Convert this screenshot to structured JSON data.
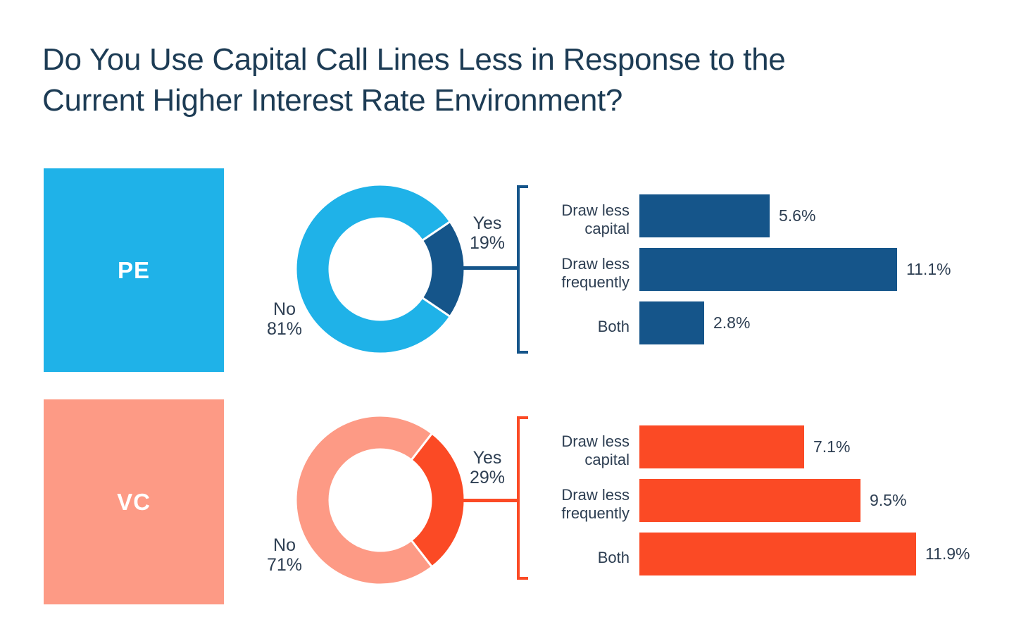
{
  "theme": {
    "background": "#FFFFFF",
    "title_color": "#1D3C55",
    "text_color": "#2D3E52"
  },
  "chart_data": {
    "type": "donut+bar",
    "title": "Do You Use Capital Call Lines Less in Response to the Current Higher Interest Rate Environment?",
    "title_lines": [
      "Do You Use Capital Call Lines Less in Response to the",
      "Current Higher Interest Rate Environment?"
    ],
    "unit": "%",
    "groups": [
      {
        "id": "pe",
        "label": "PE",
        "colors": {
          "base": "#1FB2E8",
          "accent": "#15558A"
        },
        "donut": {
          "segments": [
            {
              "label": "Yes",
              "value": 19,
              "display": "19%"
            },
            {
              "label": "No",
              "value": 81,
              "display": "81%"
            }
          ]
        },
        "bars": [
          {
            "category": "Draw less capital",
            "line1": "Draw less",
            "line2": "capital",
            "value": 5.6,
            "display": "5.6%"
          },
          {
            "category": "Draw less frequently",
            "line1": "Draw less",
            "line2": "frequently",
            "value": 11.1,
            "display": "11.1%"
          },
          {
            "category": "Both",
            "line1": "Both",
            "line2": "",
            "value": 2.8,
            "display": "2.8%"
          }
        ]
      },
      {
        "id": "vc",
        "label": "VC",
        "colors": {
          "base": "#FD9A85",
          "accent": "#FB4A25"
        },
        "donut": {
          "segments": [
            {
              "label": "Yes",
              "value": 29,
              "display": "29%"
            },
            {
              "label": "No",
              "value": 71,
              "display": "71%"
            }
          ]
        },
        "bars": [
          {
            "category": "Draw less capital",
            "line1": "Draw less",
            "line2": "capital",
            "value": 7.1,
            "display": "7.1%"
          },
          {
            "category": "Draw less frequently",
            "line1": "Draw less",
            "line2": "frequently",
            "value": 9.5,
            "display": "9.5%"
          },
          {
            "category": "Both",
            "line1": "Both",
            "line2": "",
            "value": 11.9,
            "display": "11.9%"
          }
        ]
      }
    ]
  }
}
